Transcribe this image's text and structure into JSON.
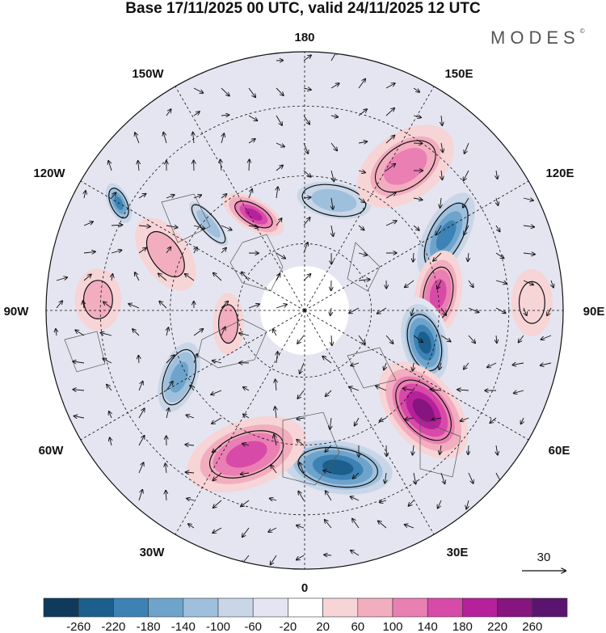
{
  "title": "Base 17/11/2025 00 UTC, valid 24/11/2025 12 UTC",
  "brand": "MODES",
  "brand_mark": "©",
  "longitude_labels": {
    "n180": "180",
    "e150": "150E",
    "e120": "120E",
    "e90": "90E",
    "e60": "60E",
    "e30": "30E",
    "s0": "0",
    "w30": "30W",
    "w60": "60W",
    "w90": "90W",
    "w120": "120W",
    "w150": "150W"
  },
  "wind_reference": {
    "value": "30"
  },
  "colorbar": {
    "colors": [
      "#0f3a5c",
      "#1d5f8c",
      "#3d82b4",
      "#6ea4cc",
      "#9fc0dd",
      "#c8d6e8",
      "#e4e5f0",
      "#ffffff",
      "#f7d4d6",
      "#f2aebf",
      "#ea7fb3",
      "#d84aa8",
      "#b7209b",
      "#86157f",
      "#5a1470"
    ],
    "labels": [
      "-260",
      "-220",
      "-180",
      "-140",
      "-100",
      "-60",
      "-20",
      "20",
      "60",
      "100",
      "140",
      "180",
      "220",
      "260"
    ]
  },
  "anomalies": [
    {
      "label": "blue-arctic-siberia",
      "lon": 165,
      "r": 0.44,
      "rx": 0.095,
      "ry": 0.2,
      "rot": 100,
      "level": 4
    },
    {
      "label": "pink-west-pacific",
      "lon": 145,
      "r": 0.68,
      "rx": 0.13,
      "ry": 0.21,
      "rot": 55,
      "level": 10
    },
    {
      "label": "blue-east-siberia",
      "lon": 118,
      "r": 0.62,
      "rx": 0.1,
      "ry": 0.22,
      "rot": 28,
      "level": 2
    },
    {
      "label": "pink-central-siberia",
      "lon": 97,
      "r": 0.52,
      "rx": 0.09,
      "ry": 0.17,
      "rot": 10,
      "level": 11
    },
    {
      "label": "blue-west-siberia",
      "lon": 75,
      "r": 0.48,
      "rx": 0.1,
      "ry": 0.18,
      "rot": -15,
      "level": 1
    },
    {
      "label": "purple-urals",
      "lon": 50,
      "r": 0.6,
      "rx": 0.13,
      "ry": 0.22,
      "rot": -40,
      "level": 13
    },
    {
      "label": "blue-europe",
      "lon": 12,
      "r": 0.62,
      "rx": 0.12,
      "ry": 0.25,
      "rot": -82,
      "level": 1
    },
    {
      "label": "pink-north-atlantic",
      "lon": -22,
      "r": 0.6,
      "rx": 0.13,
      "ry": 0.24,
      "rot": 70,
      "level": 11
    },
    {
      "label": "blue-greenland-labrador",
      "lon": -62,
      "r": 0.55,
      "rx": 0.09,
      "ry": 0.18,
      "rot": 20,
      "level": 3
    },
    {
      "label": "pink-canada-arctic",
      "lon": -80,
      "r": 0.3,
      "rx": 0.06,
      "ry": 0.12,
      "rot": 0,
      "level": 9
    },
    {
      "label": "pink-central-canada",
      "lon": -93,
      "r": 0.8,
      "rx": 0.09,
      "ry": 0.12,
      "rot": 0,
      "level": 9
    },
    {
      "label": "blue-west-canada",
      "lon": -120,
      "r": 0.83,
      "rx": 0.05,
      "ry": 0.1,
      "rot": -25,
      "level": 2
    },
    {
      "label": "pink-alaska",
      "lon": -112,
      "r": 0.58,
      "rx": 0.09,
      "ry": 0.16,
      "rot": -35,
      "level": 9
    },
    {
      "label": "blue-alaska-yukon",
      "lon": -132,
      "r": 0.5,
      "rx": 0.05,
      "ry": 0.15,
      "rot": -40,
      "level": 4
    },
    {
      "label": "pink-chukchi",
      "lon": -152,
      "r": 0.42,
      "rx": 0.06,
      "ry": 0.13,
      "rot": -60,
      "level": 12
    },
    {
      "label": "pink-east-siberia-weak",
      "lon": 92,
      "r": 0.88,
      "rx": 0.08,
      "ry": 0.13,
      "rot": 0,
      "level": 8
    }
  ]
}
